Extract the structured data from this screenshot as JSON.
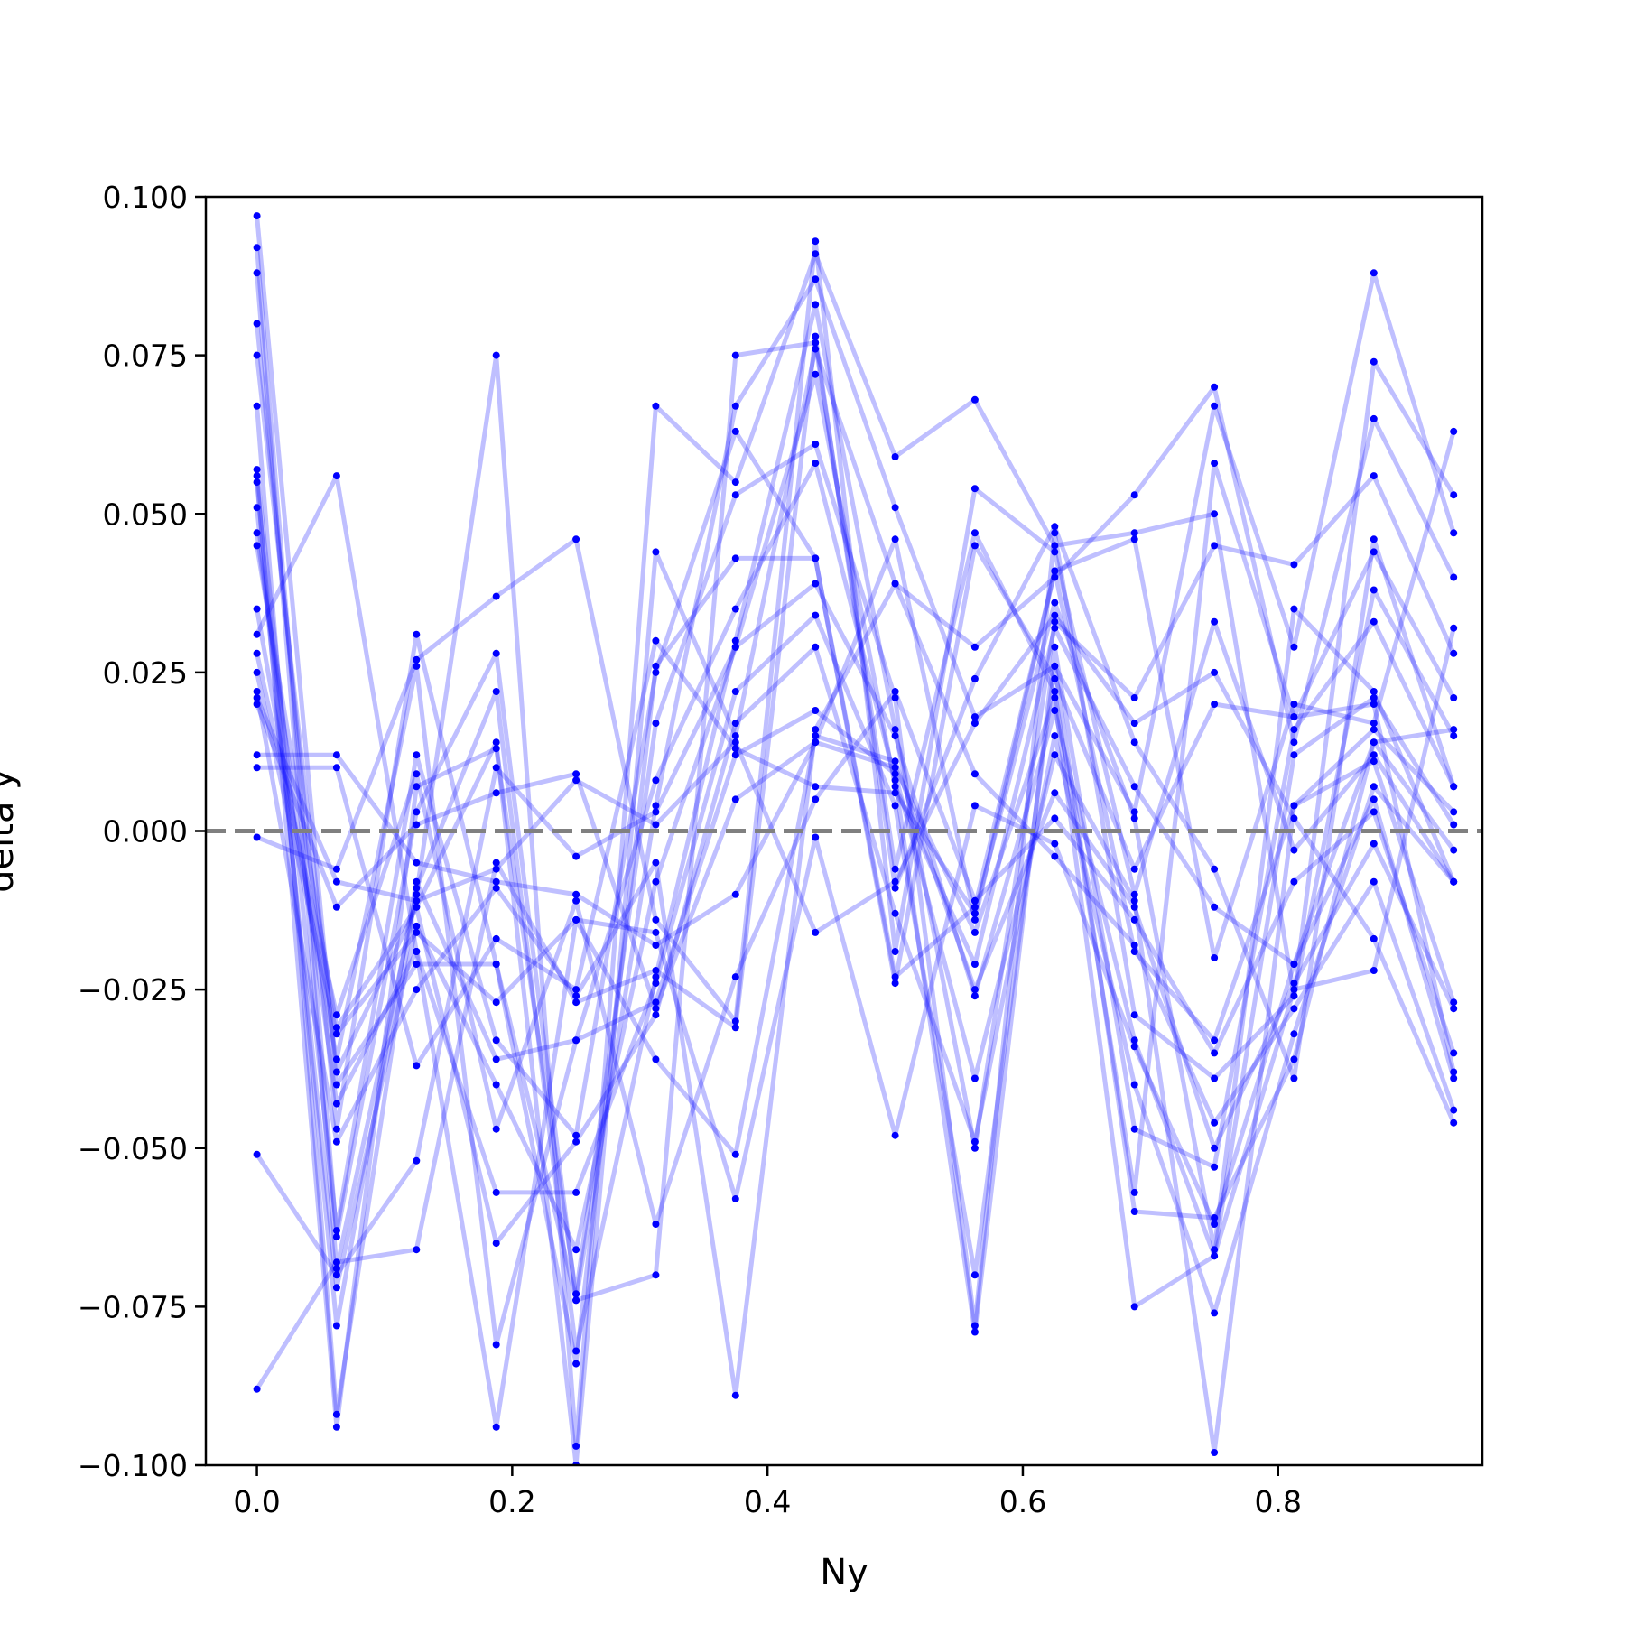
{
  "chart_data": {
    "type": "line",
    "xlabel": "Ny",
    "ylabel": "delta y",
    "xlim": [
      -0.04,
      0.96
    ],
    "ylim": [
      -0.1,
      0.1
    ],
    "x": [
      0.0,
      0.0625,
      0.125,
      0.1875,
      0.25,
      0.3125,
      0.375,
      0.4375,
      0.5,
      0.5625,
      0.625,
      0.6875,
      0.75,
      0.8125,
      0.875,
      0.9375
    ],
    "xticks": [
      0.0,
      0.2,
      0.4,
      0.6,
      0.8
    ],
    "xtick_labels": [
      "0.0",
      "0.2",
      "0.4",
      "0.6",
      "0.8"
    ],
    "yticks": [
      -0.1,
      -0.075,
      -0.05,
      -0.025,
      0.0,
      0.025,
      0.05,
      0.075,
      0.1
    ],
    "ytick_labels": [
      "−0.100",
      "−0.075",
      "−0.050",
      "−0.025",
      "0.000",
      "0.025",
      "0.050",
      "0.075",
      "0.100"
    ],
    "reference_line": {
      "y": 0.0,
      "style": "dashed",
      "color": "#808080"
    },
    "line_color": "#0000ff",
    "line_alpha": 0.25,
    "marker_color": "#0000ff",
    "grid": false,
    "series": [
      {
        "values": [
          0.097,
          -0.04,
          -0.021,
          -0.021,
          -0.084,
          0.026,
          0.043,
          0.043,
          -0.023,
          -0.012,
          0.041,
          -0.019,
          -0.033,
          0.004,
          0.016,
          0.003
        ]
      },
      {
        "values": [
          0.092,
          -0.064,
          0.003,
          0.028,
          -0.074,
          -0.07,
          0.075,
          0.077,
          -0.006,
          0.047,
          0.022,
          -0.057,
          0.058,
          0.018,
          0.02,
          -0.038
        ]
      },
      {
        "values": [
          0.088,
          -0.069,
          -0.01,
          0.075,
          -0.097,
          0.067,
          0.055,
          0.091,
          0.059,
          0.068,
          0.045,
          0.047,
          0.05,
          -0.026,
          0.074,
          0.053
        ]
      },
      {
        "values": [
          0.08,
          -0.047,
          0.031,
          -0.021,
          -0.074,
          0.004,
          0.067,
          0.087,
          0.051,
          0.018,
          0.026,
          0.003,
          0.067,
          0.029,
          0.088,
          0.047
        ]
      },
      {
        "values": [
          0.075,
          -0.038,
          -0.012,
          0.014,
          -0.1,
          0.044,
          0.015,
          0.076,
          0.039,
          0.029,
          0.04,
          0.053,
          0.07,
          0.014,
          0.065,
          0.04
        ]
      },
      {
        "values": [
          0.067,
          -0.092,
          -0.009,
          0.022,
          -0.082,
          -0.023,
          0.03,
          0.083,
          0.016,
          -0.05,
          0.033,
          0.021,
          0.045,
          0.042,
          0.056,
          0.028
        ]
      },
      {
        "values": [
          0.057,
          -0.063,
          0.012,
          -0.033,
          -0.048,
          0.025,
          0.063,
          0.043,
          -0.024,
          0.045,
          0.024,
          -0.006,
          0.02,
          0.018,
          0.044,
          0.021
        ]
      },
      {
        "values": [
          0.056,
          -0.094,
          0.007,
          0.013,
          -0.073,
          0.017,
          0.053,
          0.061,
          0.021,
          -0.078,
          0.047,
          -0.029,
          -0.039,
          -0.026,
          0.038,
          0.015
        ]
      },
      {
        "values": [
          0.055,
          -0.078,
          -0.008,
          -0.036,
          -0.033,
          0.008,
          0.035,
          0.058,
          0.008,
          -0.079,
          0.029,
          -0.047,
          -0.053,
          0.016,
          0.033,
          0.007
        ]
      },
      {
        "values": [
          0.051,
          -0.072,
          -0.015,
          -0.04,
          -0.066,
          -0.008,
          0.029,
          0.039,
          0.015,
          -0.026,
          0.019,
          -0.033,
          -0.067,
          0.012,
          0.021,
          0.001
        ]
      },
      {
        "values": [
          0.047,
          -0.043,
          -0.019,
          -0.057,
          -0.057,
          -0.024,
          0.022,
          0.034,
          0.004,
          -0.07,
          0.026,
          -0.06,
          -0.061,
          -0.036,
          0.014,
          -0.003
        ]
      },
      {
        "values": [
          0.045,
          -0.031,
          -0.012,
          -0.065,
          -0.049,
          -0.029,
          0.017,
          0.029,
          -0.013,
          -0.049,
          0.015,
          -0.04,
          -0.076,
          -0.032,
          0.007,
          -0.008
        ]
      },
      {
        "values": [
          0.035,
          -0.036,
          0.026,
          -0.081,
          -0.033,
          -0.027,
          0.012,
          0.019,
          0.009,
          -0.039,
          0.012,
          -0.011,
          -0.098,
          0.004,
          0.011,
          -0.027
        ]
      },
      {
        "values": [
          0.031,
          0.056,
          -0.019,
          -0.094,
          -0.014,
          -0.036,
          -0.051,
          0.015,
          0.011,
          -0.025,
          0.006,
          -0.012,
          -0.05,
          -0.024,
          -0.002,
          -0.028
        ]
      },
      {
        "values": [
          0.028,
          -0.029,
          0.009,
          -0.047,
          -0.011,
          -0.062,
          -0.023,
          0.005,
          0.022,
          -0.011,
          0.002,
          -0.014,
          -0.035,
          -0.008,
          0.003,
          -0.035
        ]
      },
      {
        "values": [
          0.025,
          -0.032,
          -0.016,
          -0.027,
          -0.014,
          -0.016,
          -0.058,
          -0.001,
          -0.048,
          0.004,
          -0.002,
          -0.034,
          -0.062,
          -0.021,
          0.005,
          -0.039
        ]
      },
      {
        "values": [
          0.022,
          -0.049,
          -0.025,
          -0.009,
          -0.026,
          -0.005,
          -0.089,
          0.016,
          0.039,
          0.009,
          -0.004,
          -0.018,
          -0.046,
          -0.028,
          -0.008,
          -0.044
        ]
      },
      {
        "values": [
          0.021,
          -0.008,
          -0.011,
          -0.006,
          0.008,
          0.001,
          0.014,
          -0.016,
          -0.008,
          0.017,
          0.034,
          0.017,
          0.025,
          0.002,
          -0.017,
          -0.046
        ]
      },
      {
        "values": [
          0.02,
          -0.012,
          0.001,
          0.006,
          0.009,
          -0.028,
          0.005,
          0.014,
          0.01,
          -0.016,
          0.021,
          -0.075,
          -0.067,
          -0.025,
          -0.022,
          0.032
        ]
      },
      {
        "values": [
          0.012,
          0.012,
          -0.005,
          -0.008,
          -0.01,
          -0.018,
          -0.01,
          0.014,
          0.046,
          -0.014,
          0.041,
          0.046,
          -0.02,
          0.02,
          0.017,
          0.063
        ]
      },
      {
        "values": [
          0.01,
          0.01,
          -0.037,
          -0.017,
          -0.025,
          0.03,
          0.013,
          0.007,
          0.006,
          -0.013,
          0.036,
          0.002,
          -0.066,
          0.035,
          0.022,
          -0.008
        ]
      },
      {
        "values": [
          -0.001,
          -0.006,
          0.027,
          0.037,
          0.046,
          -0.014,
          -0.03,
          0.093,
          -0.019,
          0.054,
          0.044,
          -0.01,
          0.033,
          -0.003,
          0.012,
          -0.008
        ]
      },
      {
        "values": [
          -0.051,
          -0.07,
          -0.052,
          0.01,
          -0.004,
          0.003,
          0.029,
          0.072,
          0.007,
          -0.021,
          0.032,
          0.007,
          -0.012,
          -0.021,
          0.014,
          0.016
        ]
      },
      {
        "values": [
          -0.088,
          -0.068,
          -0.066,
          -0.005,
          -0.027,
          -0.022,
          -0.031,
          0.078,
          -0.009,
          0.024,
          0.048,
          0.014,
          -0.006,
          -0.039,
          0.046,
          0.007
        ]
      }
    ]
  }
}
